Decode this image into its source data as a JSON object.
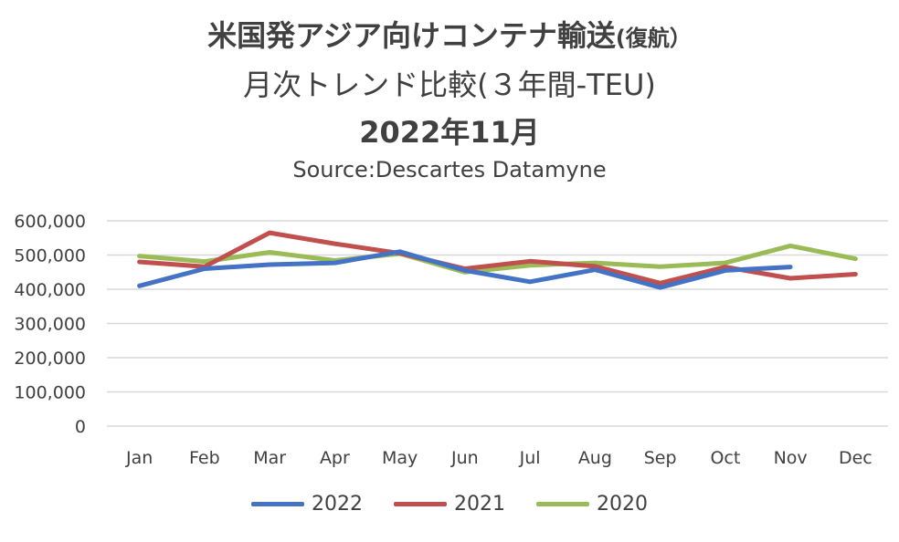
{
  "title": {
    "line1_main": "米国発アジア向けコンテナ輸送",
    "line1_small": "(復航）",
    "line2": "月次トレンド比較(３年間-TEU)",
    "line3": "2022年11月",
    "source": "Source:Descartes Datamyne"
  },
  "chart_data": {
    "type": "line",
    "title": "米国発アジア向けコンテナ輸送(復航） 月次トレンド比較(３年間-TEU) 2022年11月",
    "subtitle": "Source:Descartes Datamyne",
    "categories": [
      "Jan",
      "Feb",
      "Mar",
      "Apr",
      "May",
      "Jun",
      "Jul",
      "Aug",
      "Sep",
      "Oct",
      "Nov",
      "Dec"
    ],
    "yticks": [
      "600,000",
      "500,000",
      "400,000",
      "300,000",
      "200,000",
      "100,000",
      "0"
    ],
    "ylim": [
      0,
      600000
    ],
    "grid": true,
    "legend_position": "bottom",
    "series": [
      {
        "name": "2022",
        "color": "#4472C4",
        "values": [
          410000,
          460000,
          472000,
          477000,
          510000,
          455000,
          422000,
          457000,
          405000,
          455000,
          465000,
          null
        ]
      },
      {
        "name": "2021",
        "color": "#C0504D",
        "values": [
          480000,
          466000,
          565000,
          533000,
          505000,
          460000,
          482000,
          467000,
          418000,
          465000,
          432000,
          444000
        ]
      },
      {
        "name": "2020",
        "color": "#9BBB59",
        "values": [
          497000,
          481000,
          508000,
          484000,
          504000,
          450000,
          470000,
          477000,
          466000,
          477000,
          527000,
          489000
        ]
      }
    ]
  }
}
